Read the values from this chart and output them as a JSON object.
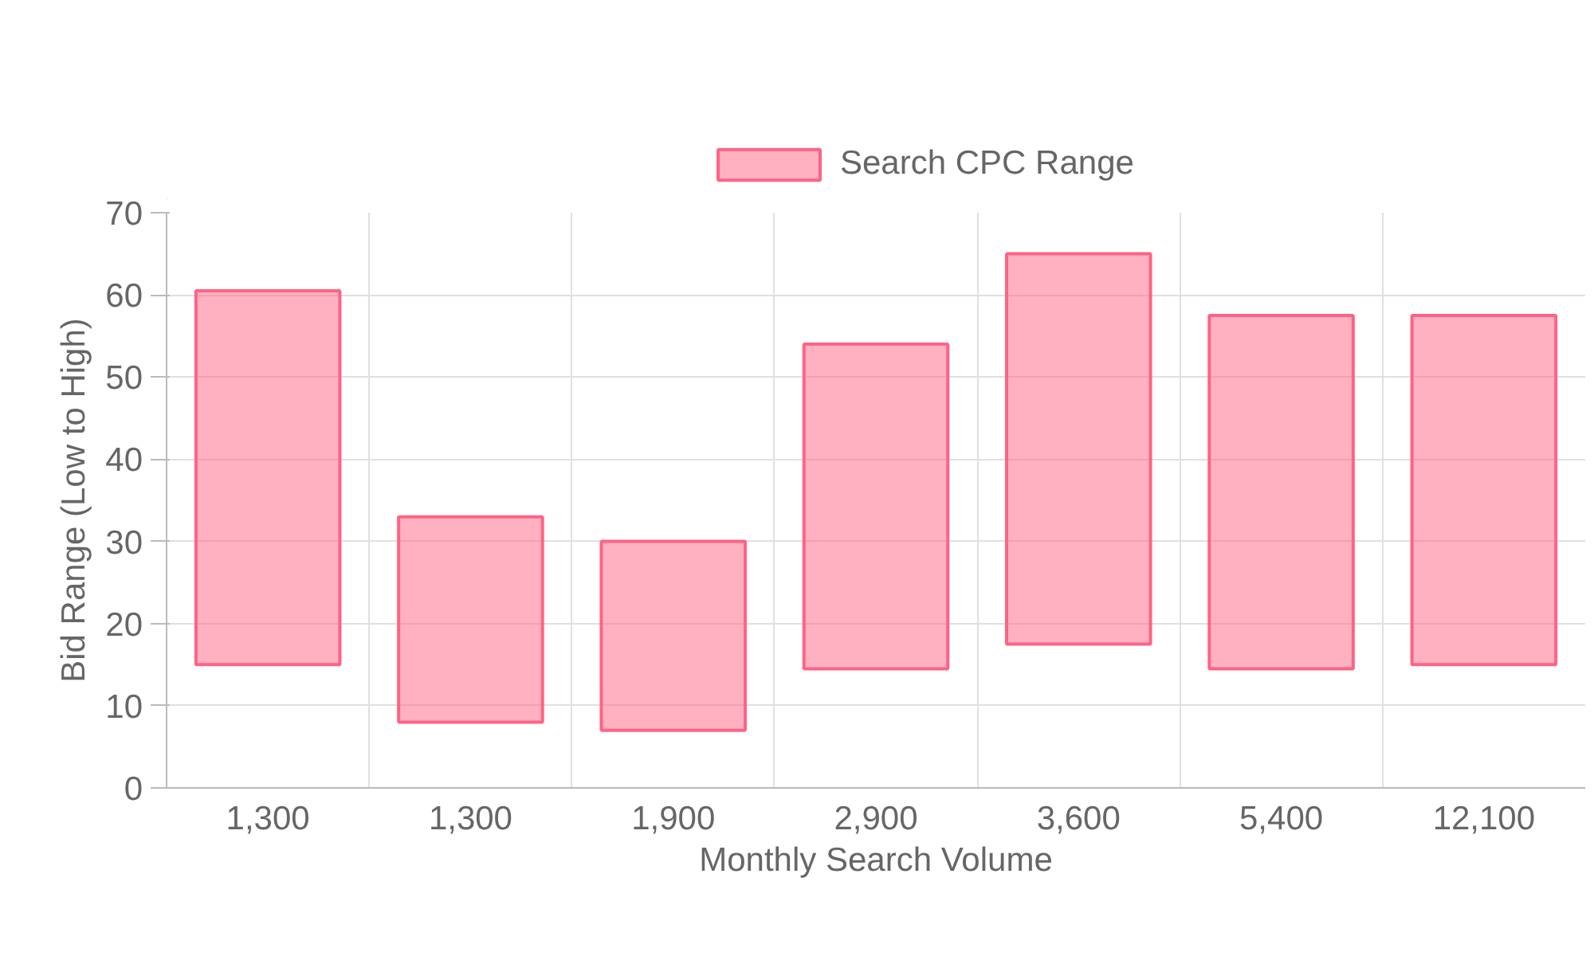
{
  "chart_data": {
    "type": "bar",
    "xlabel": "Monthly Search Volume",
    "ylabel": "Bid Range (Low to High)",
    "categories": [
      "1,300",
      "1,300",
      "1,900",
      "2,900",
      "3,600",
      "5,400",
      "12,100"
    ],
    "series": [
      {
        "name": "Search CPC Range",
        "color": "#ff6384",
        "base": [
          15,
          8,
          7,
          14.5,
          17.5,
          14.5,
          15
        ],
        "values": [
          45.5,
          25,
          23,
          39.5,
          47.5,
          43,
          42.5
        ]
      }
    ],
    "ylim": [
      0,
      70
    ],
    "yticks": [
      0,
      10,
      20,
      30,
      40,
      50,
      60,
      70
    ],
    "grid": true,
    "legend": "top"
  }
}
